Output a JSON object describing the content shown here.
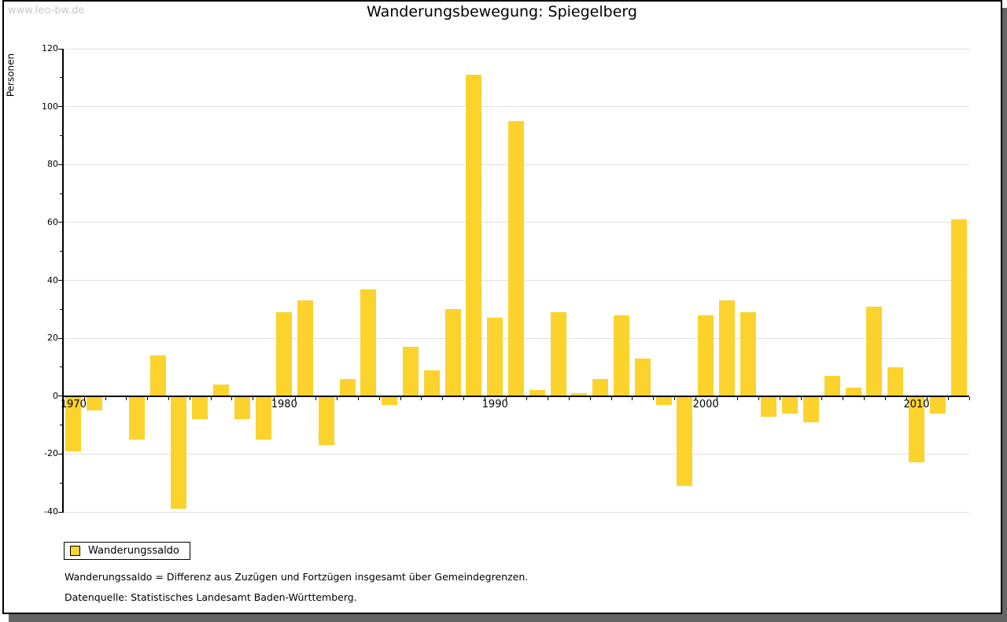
{
  "watermark": "www.leo-bw.de",
  "header": {
    "title": "Wanderungsbewegung: Spiegelberg"
  },
  "chart_data": {
    "type": "bar",
    "title": "Wanderungsbewegung: Spiegelberg",
    "xlabel": "",
    "ylabel": "Personen",
    "ylim": [
      -40,
      120
    ],
    "ytick_step": 20,
    "y_minor_tick_step": 10,
    "grid": "horizontal",
    "legend_position": "bottom-left",
    "bar_color": "#FCD32D",
    "gridline_color": "#e0e0e0",
    "years": [
      1970,
      1971,
      1972,
      1973,
      1974,
      1975,
      1976,
      1977,
      1978,
      1979,
      1980,
      1981,
      1982,
      1983,
      1984,
      1985,
      1986,
      1987,
      1988,
      1989,
      1990,
      1991,
      1992,
      1993,
      1994,
      1995,
      1996,
      1997,
      1998,
      1999,
      2000,
      2001,
      2002,
      2003,
      2004,
      2005,
      2006,
      2007,
      2008,
      2009,
      2010,
      2011,
      2012
    ],
    "values": [
      -19,
      -5,
      0,
      -15,
      14,
      -39,
      -8,
      4,
      -8,
      -15,
      29,
      33,
      -17,
      6,
      37,
      -3,
      17,
      9,
      30,
      111,
      27,
      95,
      2,
      29,
      1,
      6,
      28,
      13,
      -3,
      -31,
      28,
      33,
      29,
      -7,
      -6,
      -9,
      7,
      3,
      31,
      10,
      -23,
      -6,
      61
    ],
    "x_tick_labels": [
      "1970",
      "1980",
      "1990",
      "2000",
      "2010"
    ],
    "legend": [
      {
        "label": "Wanderungssaldo",
        "color": "#FCD32D"
      }
    ]
  },
  "footnotes": {
    "line1": "Wanderungssaldo = Differenz aus Zuzügen und Fortzügen insgesamt über Gemeindegrenzen.",
    "line2": "Datenquelle: Statistisches Landesamt Baden-Württemberg."
  }
}
